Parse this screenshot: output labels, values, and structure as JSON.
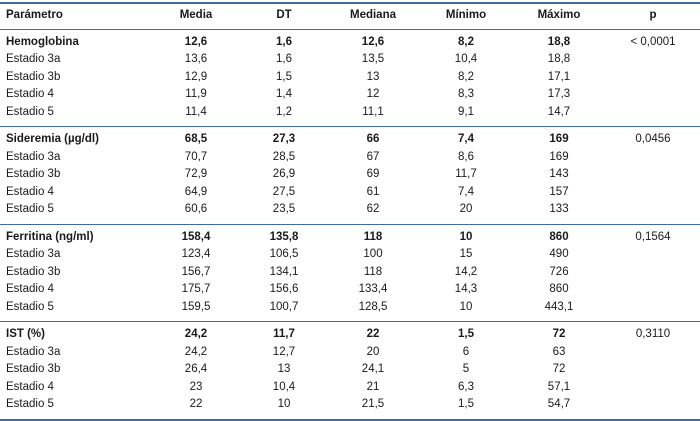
{
  "table": {
    "columns": [
      "Parámetro",
      "Media",
      "DT",
      "Mediana",
      "Mínimo",
      "Máximo",
      "p"
    ],
    "groups": [
      {
        "header": [
          "Hemoglobina",
          "12,6",
          "1,6",
          "12,6",
          "8,2",
          "18,8"
        ],
        "p": "< 0,0001",
        "rows": [
          [
            "Estadio 3a",
            "13,6",
            "1,6",
            "13,5",
            "10,4",
            "18,8"
          ],
          [
            "Estadio 3b",
            "12,9",
            "1,5",
            "13",
            "8,2",
            "17,1"
          ],
          [
            "Estadio 4",
            "11,9",
            "1,4",
            "12",
            "8,3",
            "17,3"
          ],
          [
            "Estadio 5",
            "11,4",
            "1,2",
            "11,1",
            "9,1",
            "14,7"
          ]
        ]
      },
      {
        "header": [
          "Sideremia (µg/dl)",
          "68,5",
          "27,3",
          "66",
          "7,4",
          "169"
        ],
        "p": "0,0456",
        "rows": [
          [
            "Estadio 3a",
            "70,7",
            "28,5",
            "67",
            "8,6",
            "169"
          ],
          [
            "Estadio 3b",
            "72,9",
            "26,9",
            "69",
            "11,7",
            "143"
          ],
          [
            "Estadio 4",
            "64,9",
            "27,5",
            "61",
            "7,4",
            "157"
          ],
          [
            "Estadio 5",
            "60,6",
            "23,5",
            "62",
            "20",
            "133"
          ]
        ]
      },
      {
        "header": [
          "Ferritina (ng/ml)",
          "158,4",
          "135,8",
          "118",
          "10",
          "860"
        ],
        "p": "0,1564",
        "rows": [
          [
            "Estadio 3a",
            "123,4",
            "106,5",
            "100",
            "15",
            "490"
          ],
          [
            "Estadio 3b",
            "156,7",
            "134,1",
            "118",
            "14,2",
            "726"
          ],
          [
            "Estadio 4",
            "175,7",
            "156,6",
            "133,4",
            "14,3",
            "860"
          ],
          [
            "Estadio 5",
            "159,5",
            "100,7",
            "128,5",
            "10",
            "443,1"
          ]
        ]
      },
      {
        "header": [
          "IST (%)",
          "24,2",
          "11,7",
          "22",
          "1,5",
          "72"
        ],
        "p": "0,3110",
        "rows": [
          [
            "Estadio 3a",
            "24,2",
            "12,7",
            "20",
            "6",
            "63"
          ],
          [
            "Estadio 3b",
            "26,4",
            "13",
            "24,1",
            "5",
            "72"
          ],
          [
            "Estadio 4",
            "23",
            "10,4",
            "21",
            "6,3",
            "57,1"
          ],
          [
            "Estadio 5",
            "22",
            "10",
            "21,5",
            "1,5",
            "54,7"
          ]
        ]
      }
    ]
  },
  "colors": {
    "rule": "#3f6aa3",
    "text": "#1a1a1a"
  }
}
